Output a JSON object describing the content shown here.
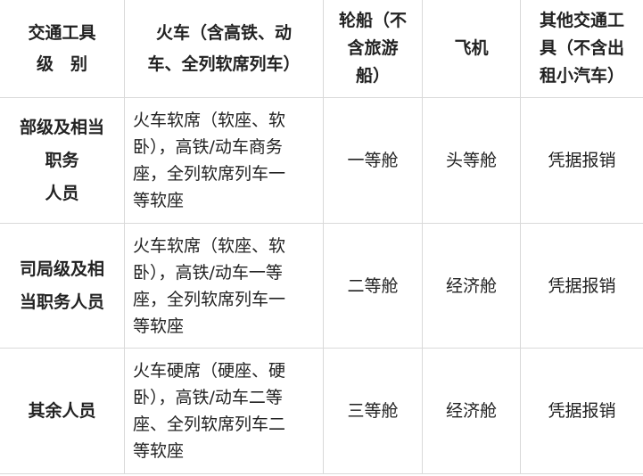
{
  "header": [
    [
      "交通工具",
      "级　别"
    ],
    [
      "火车（含高铁、动",
      "车、全列软席列车）"
    ],
    [
      "轮船（不",
      "含旅游",
      "船）"
    ],
    [
      "飞机"
    ],
    [
      "其他交通工",
      "具（不含出",
      "租小汽车）"
    ]
  ],
  "rows": [
    {
      "level": [
        "部级及相当",
        "职务",
        "人员"
      ],
      "train": [
        "火车软席（软座、软",
        "卧），高铁/动车商务",
        "座，全列软席列车一",
        "等软座"
      ],
      "ship": "一等舱",
      "plane": "头等舱",
      "other": "凭据报销"
    },
    {
      "level": [
        "司局级及相",
        "当职务人员"
      ],
      "train": [
        "火车软席（软座、软",
        "卧），高铁/动车一等",
        "座，全列软席列车一",
        "等软座"
      ],
      "ship": "二等舱",
      "plane": "经济舱",
      "other": "凭据报销"
    },
    {
      "level": [
        "其余人员"
      ],
      "train": [
        "火车硬席（硬座、硬",
        "卧），高铁/动车二等",
        "座、全列软席列车二",
        "等软座"
      ],
      "ship": "三等舱",
      "plane": "经济舱",
      "other": "凭据报销"
    }
  ]
}
